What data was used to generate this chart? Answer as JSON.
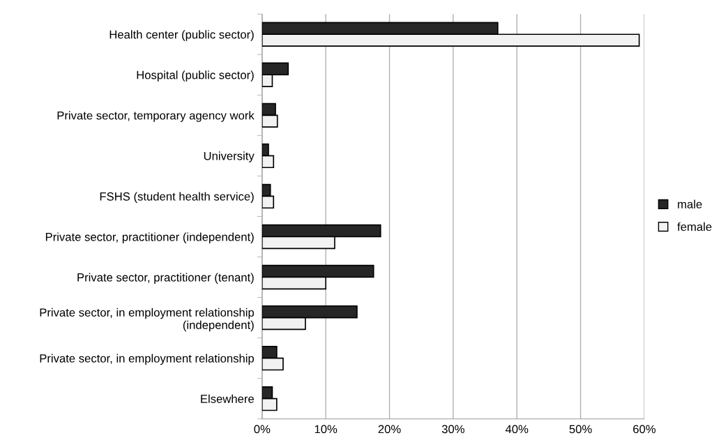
{
  "chart_data": {
    "type": "bar",
    "orientation": "horizontal",
    "categories": [
      "Health center (public sector)",
      "Hospital (public sector)",
      "Private sector, temporary agency work",
      "University",
      "FSHS (student health service)",
      "Private sector, practitioner (independent)",
      "Private sector, practitioner (tenant)",
      "Private sector, in employment relationship\n(independent)",
      "Private sector, in employment relationship",
      "Elsewhere"
    ],
    "series": [
      {
        "name": "male",
        "color": "#262626",
        "values": [
          37.0,
          4.1,
          2.1,
          1.0,
          1.3,
          18.6,
          17.5,
          14.9,
          2.3,
          1.6
        ]
      },
      {
        "name": "female",
        "color": "#f2f2f2",
        "values": [
          59.2,
          1.6,
          2.4,
          1.8,
          1.8,
          11.4,
          10.0,
          6.8,
          3.3,
          2.3
        ]
      }
    ],
    "xlim": [
      0,
      60
    ],
    "xticks": [
      {
        "value": 0,
        "label": "0%"
      },
      {
        "value": 10,
        "label": "10%"
      },
      {
        "value": 20,
        "label": "20%"
      },
      {
        "value": 30,
        "label": "30%"
      },
      {
        "value": 40,
        "label": "40%"
      },
      {
        "value": 50,
        "label": "50%"
      },
      {
        "value": 60,
        "label": "60%"
      }
    ],
    "grid": "x",
    "legend": "right"
  }
}
